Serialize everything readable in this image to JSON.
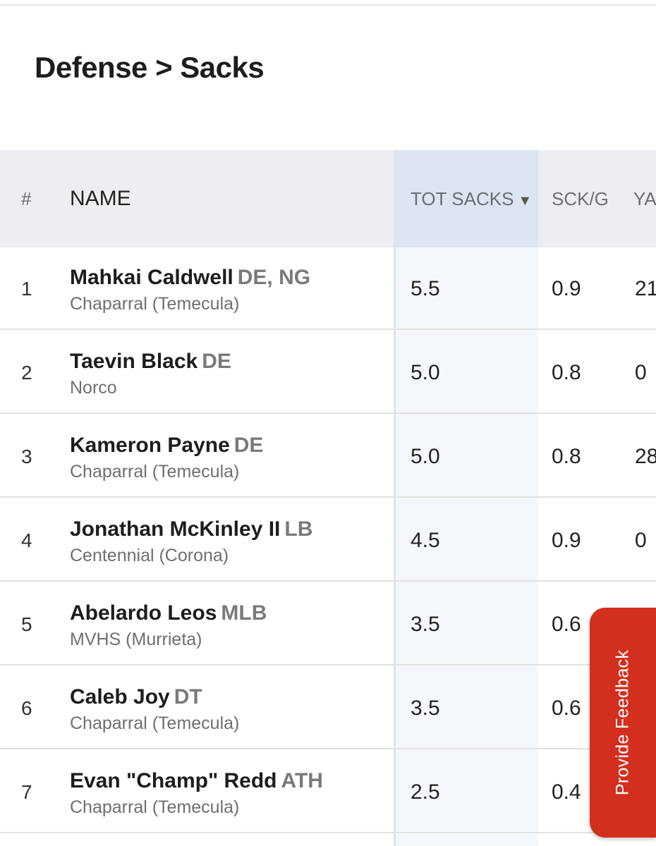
{
  "page": {
    "title": "Defense > Sacks"
  },
  "table": {
    "headers": {
      "rank": "#",
      "name": "NAME",
      "tot_sacks": "TOT SACKS",
      "sort_indicator": "▼",
      "sck_per_game": "SCK/G",
      "yards_partial": "YA"
    },
    "rows": [
      {
        "rank": "1",
        "name": "Mahkai Caldwell",
        "pos": "DE, NG",
        "school": "Chaparral (Temecula)",
        "tot": "5.5",
        "sckg": "0.9",
        "yds": "21"
      },
      {
        "rank": "2",
        "name": "Taevin Black",
        "pos": "DE",
        "school": "Norco",
        "tot": "5.0",
        "sckg": "0.8",
        "yds": "0"
      },
      {
        "rank": "3",
        "name": "Kameron Payne",
        "pos": "DE",
        "school": "Chaparral (Temecula)",
        "tot": "5.0",
        "sckg": "0.8",
        "yds": "28"
      },
      {
        "rank": "4",
        "name": "Jonathan McKinley II",
        "pos": "LB",
        "school": "Centennial (Corona)",
        "tot": "4.5",
        "sckg": "0.9",
        "yds": "0"
      },
      {
        "rank": "5",
        "name": "Abelardo Leos",
        "pos": "MLB",
        "school": "MVHS (Murrieta)",
        "tot": "3.5",
        "sckg": "0.6",
        "yds": ""
      },
      {
        "rank": "6",
        "name": "Caleb Joy",
        "pos": "DT",
        "school": "Chaparral (Temecula)",
        "tot": "3.5",
        "sckg": "0.6",
        "yds": ""
      },
      {
        "rank": "7",
        "name": "Evan \"Champ\" Redd",
        "pos": "ATH",
        "school": "Chaparral (Temecula)",
        "tot": "2.5",
        "sckg": "0.4",
        "yds": ""
      }
    ]
  },
  "feedback": {
    "label": "Provide Feedback",
    "color": "#d32f1f"
  },
  "colors": {
    "header_bg": "#eceef2",
    "sorted_column_header_bg": "#dde4f2",
    "sorted_column_bg": "#f4f7fc"
  }
}
